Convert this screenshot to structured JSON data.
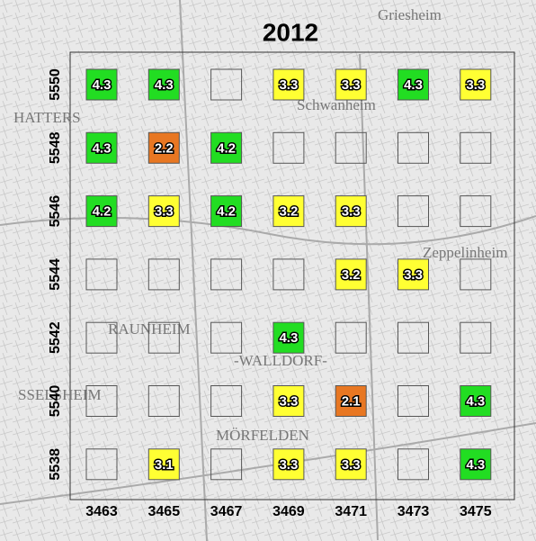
{
  "map": {
    "title": "2012",
    "x_labels": [
      "3463",
      "3465",
      "3467",
      "3469",
      "3471",
      "3473",
      "3475"
    ],
    "y_labels": [
      "5550",
      "5548",
      "5546",
      "5544",
      "5542",
      "5540",
      "5538"
    ],
    "cells": [
      [
        4.3,
        4.3,
        null,
        3.3,
        3.3,
        4.3,
        3.3
      ],
      [
        4.3,
        2.2,
        4.2,
        null,
        null,
        null,
        null
      ],
      [
        4.2,
        3.3,
        4.2,
        3.2,
        3.3,
        null,
        null
      ],
      [
        null,
        null,
        null,
        null,
        3.2,
        3.3,
        null
      ],
      [
        null,
        null,
        null,
        4.3,
        null,
        null,
        null
      ],
      [
        null,
        null,
        null,
        3.3,
        2.1,
        null,
        4.3
      ],
      [
        null,
        3.1,
        null,
        3.3,
        3.3,
        null,
        4.3
      ]
    ],
    "colors": [
      [
        "#22dd22",
        "#22dd22",
        null,
        "#ffff33",
        "#ffff33",
        "#22dd22",
        "#ffff33"
      ],
      [
        "#22dd22",
        "#e87722",
        "#22dd22",
        null,
        null,
        null,
        null
      ],
      [
        "#22dd22",
        "#ffff33",
        "#22dd22",
        "#ffff33",
        "#ffff33",
        null,
        null
      ],
      [
        null,
        null,
        null,
        null,
        "#ffff33",
        "#ffff33",
        null
      ],
      [
        null,
        null,
        null,
        "#22dd22",
        null,
        null,
        null
      ],
      [
        null,
        null,
        null,
        "#ffff33",
        "#e87722",
        null,
        "#22dd22"
      ],
      [
        null,
        "#ffff33",
        null,
        "#ffff33",
        "#ffff33",
        null,
        "#22dd22"
      ]
    ],
    "map_labels": [
      "RAUNHEIM",
      "-WALLDORF-",
      "MÖRFELDEN",
      "SSELSHEIM",
      "Zeppelinheim",
      "Schwanheim",
      "Griesheim",
      "HATTERS"
    ]
  }
}
